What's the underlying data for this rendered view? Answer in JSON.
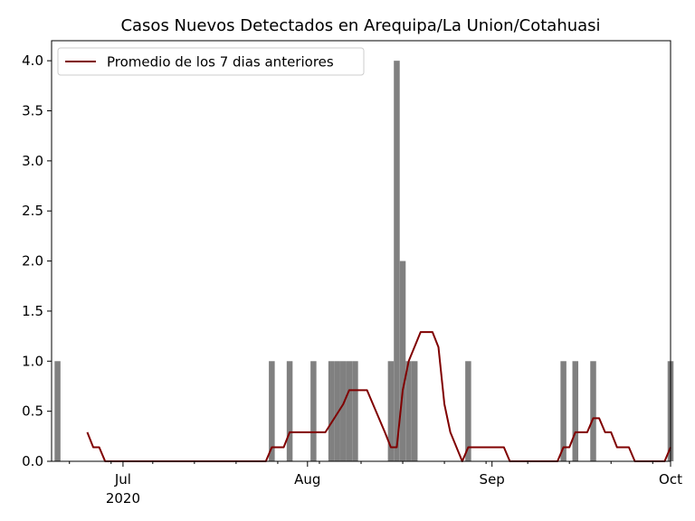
{
  "chart_data": {
    "type": "bar",
    "title": "Casos Nuevos Detectados en Arequipa/La Union/Cotahuasi",
    "xlabel": "",
    "ylabel": "",
    "ylim": [
      0,
      4.2
    ],
    "xlim": [
      "2020-06-19",
      "2020-10-01"
    ],
    "y_ticks": [
      "0.0",
      "0.5",
      "1.0",
      "1.5",
      "2.0",
      "2.5",
      "3.0",
      "3.5",
      "4.0"
    ],
    "x_ticks": [
      {
        "date": "2020-07-01",
        "label": "Jul",
        "sublabel": "2020"
      },
      {
        "date": "2020-08-01",
        "label": "Aug",
        "sublabel": ""
      },
      {
        "date": "2020-09-01",
        "label": "Sep",
        "sublabel": ""
      },
      {
        "date": "2020-10-01",
        "label": "Oct",
        "sublabel": ""
      }
    ],
    "grid": false,
    "legend_position": "top-left",
    "colors": {
      "bars": "#808080",
      "line": "#800000"
    },
    "series": [
      {
        "kind": "bar",
        "points": [
          {
            "date": "2020-06-20",
            "value": 1
          },
          {
            "date": "2020-07-26",
            "value": 1
          },
          {
            "date": "2020-07-29",
            "value": 1
          },
          {
            "date": "2020-08-02",
            "value": 1
          },
          {
            "date": "2020-08-05",
            "value": 1
          },
          {
            "date": "2020-08-06",
            "value": 1
          },
          {
            "date": "2020-08-07",
            "value": 1
          },
          {
            "date": "2020-08-08",
            "value": 1
          },
          {
            "date": "2020-08-09",
            "value": 1
          },
          {
            "date": "2020-08-15",
            "value": 1
          },
          {
            "date": "2020-08-16",
            "value": 4
          },
          {
            "date": "2020-08-17",
            "value": 2
          },
          {
            "date": "2020-08-18",
            "value": 1
          },
          {
            "date": "2020-08-19",
            "value": 1
          },
          {
            "date": "2020-08-28",
            "value": 1
          },
          {
            "date": "2020-09-13",
            "value": 1
          },
          {
            "date": "2020-09-15",
            "value": 1
          },
          {
            "date": "2020-09-18",
            "value": 1
          },
          {
            "date": "2020-10-01",
            "value": 1
          }
        ]
      },
      {
        "kind": "line",
        "name": "Promedio de los 7 dias anteriores",
        "points": [
          {
            "date": "2020-06-25",
            "value": 0.29
          },
          {
            "date": "2020-06-26",
            "value": 0.14
          },
          {
            "date": "2020-06-27",
            "value": 0.14
          },
          {
            "date": "2020-06-28",
            "value": 0
          },
          {
            "date": "2020-07-25",
            "value": 0
          },
          {
            "date": "2020-07-26",
            "value": 0.14
          },
          {
            "date": "2020-07-28",
            "value": 0.14
          },
          {
            "date": "2020-07-29",
            "value": 0.29
          },
          {
            "date": "2020-08-04",
            "value": 0.29
          },
          {
            "date": "2020-08-07",
            "value": 0.57
          },
          {
            "date": "2020-08-08",
            "value": 0.71
          },
          {
            "date": "2020-08-11",
            "value": 0.71
          },
          {
            "date": "2020-08-14",
            "value": 0.29
          },
          {
            "date": "2020-08-15",
            "value": 0.14
          },
          {
            "date": "2020-08-16",
            "value": 0.14
          },
          {
            "date": "2020-08-17",
            "value": 0.71
          },
          {
            "date": "2020-08-18",
            "value": 1
          },
          {
            "date": "2020-08-20",
            "value": 1.29
          },
          {
            "date": "2020-08-22",
            "value": 1.29
          },
          {
            "date": "2020-08-23",
            "value": 1.14
          },
          {
            "date": "2020-08-24",
            "value": 0.57
          },
          {
            "date": "2020-08-25",
            "value": 0.29
          },
          {
            "date": "2020-08-27",
            "value": 0
          },
          {
            "date": "2020-08-28",
            "value": 0.14
          },
          {
            "date": "2020-09-03",
            "value": 0.14
          },
          {
            "date": "2020-09-04",
            "value": 0
          },
          {
            "date": "2020-09-12",
            "value": 0
          },
          {
            "date": "2020-09-13",
            "value": 0.14
          },
          {
            "date": "2020-09-14",
            "value": 0.14
          },
          {
            "date": "2020-09-15",
            "value": 0.29
          },
          {
            "date": "2020-09-17",
            "value": 0.29
          },
          {
            "date": "2020-09-18",
            "value": 0.43
          },
          {
            "date": "2020-09-19",
            "value": 0.43
          },
          {
            "date": "2020-09-20",
            "value": 0.29
          },
          {
            "date": "2020-09-21",
            "value": 0.29
          },
          {
            "date": "2020-09-22",
            "value": 0.14
          },
          {
            "date": "2020-09-24",
            "value": 0.14
          },
          {
            "date": "2020-09-25",
            "value": 0
          },
          {
            "date": "2020-09-30",
            "value": 0
          },
          {
            "date": "2020-10-01",
            "value": 0.14
          }
        ]
      }
    ]
  }
}
